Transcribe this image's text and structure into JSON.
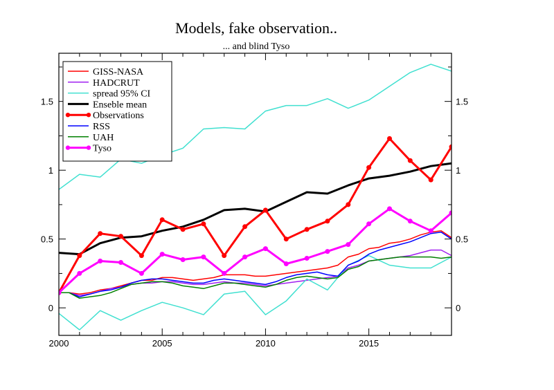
{
  "chart_data": {
    "type": "line",
    "title": "Models, fake observation..",
    "subtitle": "... and blind Tyso",
    "xlabel": "",
    "ylabel": "",
    "xlim": [
      2000,
      2019
    ],
    "ylim": [
      -0.2,
      1.85
    ],
    "x_ticks": [
      2000,
      2005,
      2010,
      2015
    ],
    "y_ticks": [
      0,
      0.5,
      1,
      1.5
    ],
    "y_tick_labels": [
      "0",
      "0.5",
      "1",
      "1.5"
    ],
    "grid": false,
    "legend_position": "top-left",
    "series": [
      {
        "name": "GISS-NASA",
        "color": "#ff0000",
        "width": 1.5,
        "markers": false,
        "x": [
          2000,
          2000.5,
          2001,
          2001.5,
          2002,
          2002.5,
          2003,
          2003.5,
          2004,
          2004.5,
          2005,
          2005.5,
          2006,
          2006.5,
          2007,
          2007.5,
          2008,
          2008.5,
          2009,
          2009.5,
          2010,
          2010.5,
          2011,
          2011.5,
          2012,
          2012.5,
          2013,
          2013.5,
          2014,
          2014.5,
          2015,
          2015.5,
          2016,
          2016.5,
          2017,
          2017.5,
          2018,
          2018.5,
          2019
        ],
        "y": [
          0.11,
          0.11,
          0.1,
          0.11,
          0.13,
          0.14,
          0.16,
          0.18,
          0.2,
          0.2,
          0.22,
          0.22,
          0.21,
          0.2,
          0.21,
          0.22,
          0.24,
          0.24,
          0.24,
          0.23,
          0.23,
          0.24,
          0.25,
          0.26,
          0.27,
          0.28,
          0.29,
          0.31,
          0.37,
          0.39,
          0.43,
          0.44,
          0.47,
          0.48,
          0.5,
          0.53,
          0.55,
          0.56,
          0.51
        ]
      },
      {
        "name": "HADCRUT",
        "color": "#a020f0",
        "width": 1.5,
        "markers": false,
        "x": [
          2000,
          2000.5,
          2001,
          2001.5,
          2002,
          2002.5,
          2003,
          2003.5,
          2004,
          2004.5,
          2005,
          2005.5,
          2006,
          2006.5,
          2007,
          2007.5,
          2008,
          2008.5,
          2009,
          2009.5,
          2010,
          2010.5,
          2011,
          2011.5,
          2012,
          2012.5,
          2013,
          2013.5,
          2014,
          2014.5,
          2015,
          2015.5,
          2016,
          2016.5,
          2017,
          2017.5,
          2018,
          2018.5,
          2019
        ],
        "y": [
          0.11,
          0.11,
          0.09,
          0.1,
          0.12,
          0.14,
          0.15,
          0.17,
          0.18,
          0.18,
          0.19,
          0.19,
          0.18,
          0.17,
          0.17,
          0.18,
          0.19,
          0.18,
          0.18,
          0.17,
          0.16,
          0.17,
          0.18,
          0.19,
          0.2,
          0.21,
          0.22,
          0.23,
          0.29,
          0.31,
          0.34,
          0.35,
          0.36,
          0.37,
          0.38,
          0.4,
          0.42,
          0.42,
          0.38
        ]
      },
      {
        "name": "spread 95% CI",
        "color": "#40e0d0",
        "width": 1.5,
        "markers": false,
        "x": [
          2000,
          2001,
          2002,
          2003,
          2004,
          2005,
          2006,
          2007,
          2008,
          2009,
          2010,
          2011,
          2012,
          2013,
          2014,
          2015,
          2016,
          2017,
          2018,
          2019
        ],
        "y": [
          0.86,
          0.97,
          0.95,
          1.08,
          1.05,
          1.11,
          1.16,
          1.3,
          1.31,
          1.3,
          1.43,
          1.47,
          1.47,
          1.52,
          1.45,
          1.51,
          1.61,
          1.71,
          1.77,
          1.72
        ]
      },
      {
        "name": "",
        "color": "#40e0d0",
        "width": 1.5,
        "markers": false,
        "x": [
          2000,
          2001,
          2002,
          2003,
          2004,
          2005,
          2006,
          2007,
          2008,
          2009,
          2010,
          2011,
          2012,
          2013,
          2014,
          2015,
          2016,
          2017,
          2018,
          2019
        ],
        "y": [
          -0.04,
          -0.16,
          -0.02,
          -0.09,
          -0.02,
          0.04,
          0.0,
          -0.05,
          0.1,
          0.12,
          -0.05,
          0.05,
          0.21,
          0.13,
          0.31,
          0.38,
          0.31,
          0.29,
          0.29,
          0.37
        ]
      },
      {
        "name": "Enseble mean",
        "color": "#000000",
        "width": 3,
        "markers": false,
        "x": [
          2000,
          2001,
          2002,
          2003,
          2004,
          2005,
          2006,
          2007,
          2008,
          2009,
          2010,
          2011,
          2012,
          2013,
          2014,
          2015,
          2016,
          2017,
          2018,
          2019
        ],
        "y": [
          0.4,
          0.39,
          0.47,
          0.51,
          0.52,
          0.56,
          0.59,
          0.64,
          0.71,
          0.72,
          0.7,
          0.77,
          0.84,
          0.83,
          0.89,
          0.94,
          0.96,
          0.99,
          1.03,
          1.05
        ]
      },
      {
        "name": "Observations",
        "color": "#ff0000",
        "width": 3,
        "markers": true,
        "x": [
          2000,
          2001,
          2002,
          2003,
          2004,
          2005,
          2006,
          2007,
          2008,
          2009,
          2010,
          2011,
          2012,
          2013,
          2014,
          2015,
          2016,
          2017,
          2018,
          2019
        ],
        "y": [
          0.11,
          0.38,
          0.54,
          0.52,
          0.38,
          0.64,
          0.57,
          0.61,
          0.38,
          0.59,
          0.71,
          0.5,
          0.57,
          0.63,
          0.75,
          1.02,
          1.23,
          1.07,
          0.93,
          1.17
        ]
      },
      {
        "name": "RSS",
        "color": "#0000ff",
        "width": 1.5,
        "markers": false,
        "x": [
          2000,
          2000.5,
          2001,
          2001.5,
          2002,
          2002.5,
          2003,
          2003.5,
          2004,
          2004.5,
          2005,
          2005.5,
          2006,
          2006.5,
          2007,
          2007.5,
          2008,
          2008.5,
          2009,
          2009.5,
          2010,
          2010.5,
          2011,
          2011.5,
          2012,
          2012.5,
          2013,
          2013.5,
          2014,
          2014.5,
          2015,
          2015.5,
          2016,
          2016.5,
          2017,
          2017.5,
          2018,
          2018.5,
          2019
        ],
        "y": [
          0.11,
          0.11,
          0.08,
          0.1,
          0.12,
          0.13,
          0.15,
          0.18,
          0.2,
          0.21,
          0.21,
          0.2,
          0.19,
          0.18,
          0.18,
          0.2,
          0.21,
          0.2,
          0.19,
          0.18,
          0.17,
          0.19,
          0.22,
          0.24,
          0.25,
          0.26,
          0.24,
          0.23,
          0.31,
          0.34,
          0.39,
          0.42,
          0.44,
          0.46,
          0.48,
          0.51,
          0.54,
          0.55,
          0.5
        ]
      },
      {
        "name": "UAH",
        "color": "#008000",
        "width": 1.5,
        "markers": false,
        "x": [
          2000,
          2000.5,
          2001,
          2001.5,
          2002,
          2002.5,
          2003,
          2003.5,
          2004,
          2004.5,
          2005,
          2005.5,
          2006,
          2006.5,
          2007,
          2007.5,
          2008,
          2008.5,
          2009,
          2009.5,
          2010,
          2010.5,
          2011,
          2011.5,
          2012,
          2012.5,
          2013,
          2013.5,
          2014,
          2014.5,
          2015,
          2015.5,
          2016,
          2016.5,
          2017,
          2017.5,
          2018,
          2018.5,
          2019
        ],
        "y": [
          0.11,
          0.11,
          0.07,
          0.08,
          0.09,
          0.11,
          0.14,
          0.17,
          0.18,
          0.19,
          0.19,
          0.18,
          0.16,
          0.15,
          0.14,
          0.16,
          0.18,
          0.18,
          0.17,
          0.16,
          0.15,
          0.17,
          0.2,
          0.22,
          0.23,
          0.22,
          0.21,
          0.22,
          0.28,
          0.3,
          0.34,
          0.35,
          0.36,
          0.37,
          0.37,
          0.37,
          0.37,
          0.36,
          0.37
        ]
      },
      {
        "name": "Tyso",
        "color": "#ff00ff",
        "width": 3,
        "markers": true,
        "x": [
          2000,
          2001,
          2002,
          2003,
          2004,
          2005,
          2006,
          2007,
          2008,
          2009,
          2010,
          2011,
          2012,
          2013,
          2014,
          2015,
          2016,
          2017,
          2018,
          2019
        ],
        "y": [
          0.11,
          0.25,
          0.34,
          0.33,
          0.25,
          0.39,
          0.35,
          0.37,
          0.25,
          0.37,
          0.43,
          0.32,
          0.36,
          0.41,
          0.46,
          0.61,
          0.72,
          0.63,
          0.56,
          0.69
        ]
      }
    ]
  }
}
